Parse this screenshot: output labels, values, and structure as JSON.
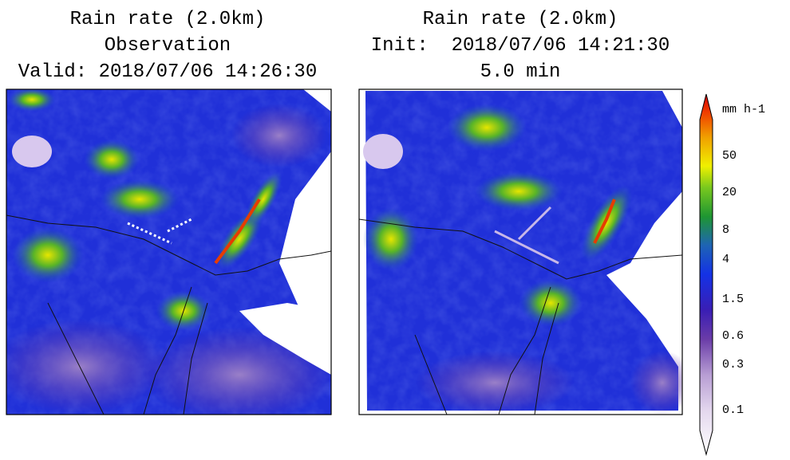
{
  "panels": [
    {
      "title_lines": [
        "Rain rate (2.0km)",
        "Observation",
        "Valid: 2018/07/06 14:26:30"
      ]
    },
    {
      "title_lines": [
        "Rain rate (2.0km)",
        "Init:  2018/07/06 14:21:30",
        "5.0 min"
      ]
    }
  ],
  "colorbar": {
    "unit": "mm h-1",
    "ticks": [
      50,
      20,
      8,
      4,
      1.5,
      0.6,
      0.3,
      0.1
    ]
  }
}
